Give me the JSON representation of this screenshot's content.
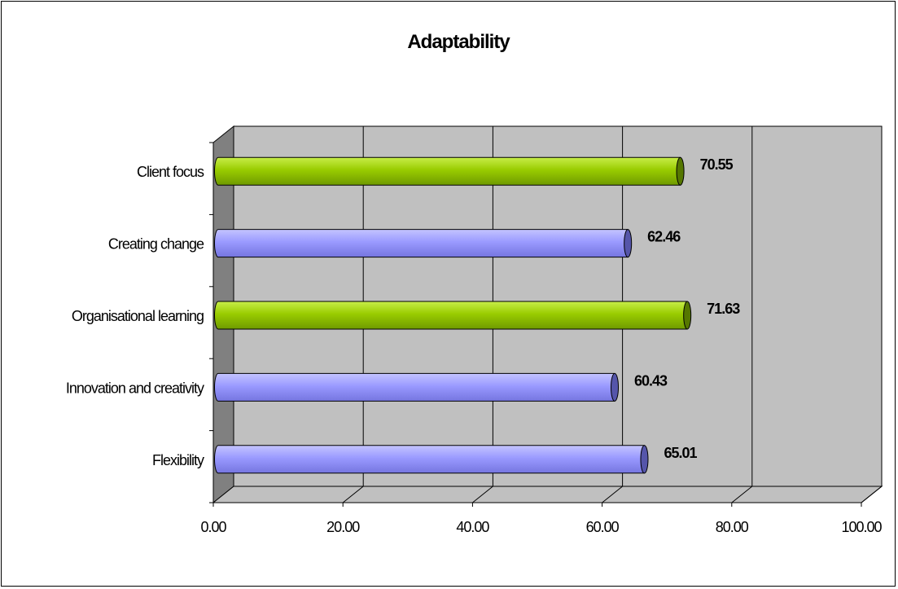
{
  "chart_data": {
    "type": "bar",
    "orientation": "horizontal",
    "title": "Adaptability",
    "categories": [
      "Client focus",
      "Creating change",
      "Organisational learning",
      "Innovation and creativity",
      "Flexibility"
    ],
    "values": [
      70.55,
      62.46,
      71.63,
      60.43,
      65.01
    ],
    "value_labels": [
      "70.55",
      "62.46",
      "71.63",
      "60.43",
      "65.01"
    ],
    "bar_colors": [
      "#8fc400",
      "#9999ff",
      "#8fc400",
      "#9999ff",
      "#9999ff"
    ],
    "xlim": [
      0,
      100
    ],
    "x_ticks": [
      0,
      20,
      40,
      60,
      80,
      100
    ],
    "x_tick_labels": [
      "0.00",
      "20.00",
      "40.00",
      "60.00",
      "80.00",
      "100.00"
    ],
    "xlabel": "",
    "ylabel": "",
    "grid": true,
    "legend": "none",
    "style": "3d",
    "plot_background": "#c0c0c0"
  }
}
